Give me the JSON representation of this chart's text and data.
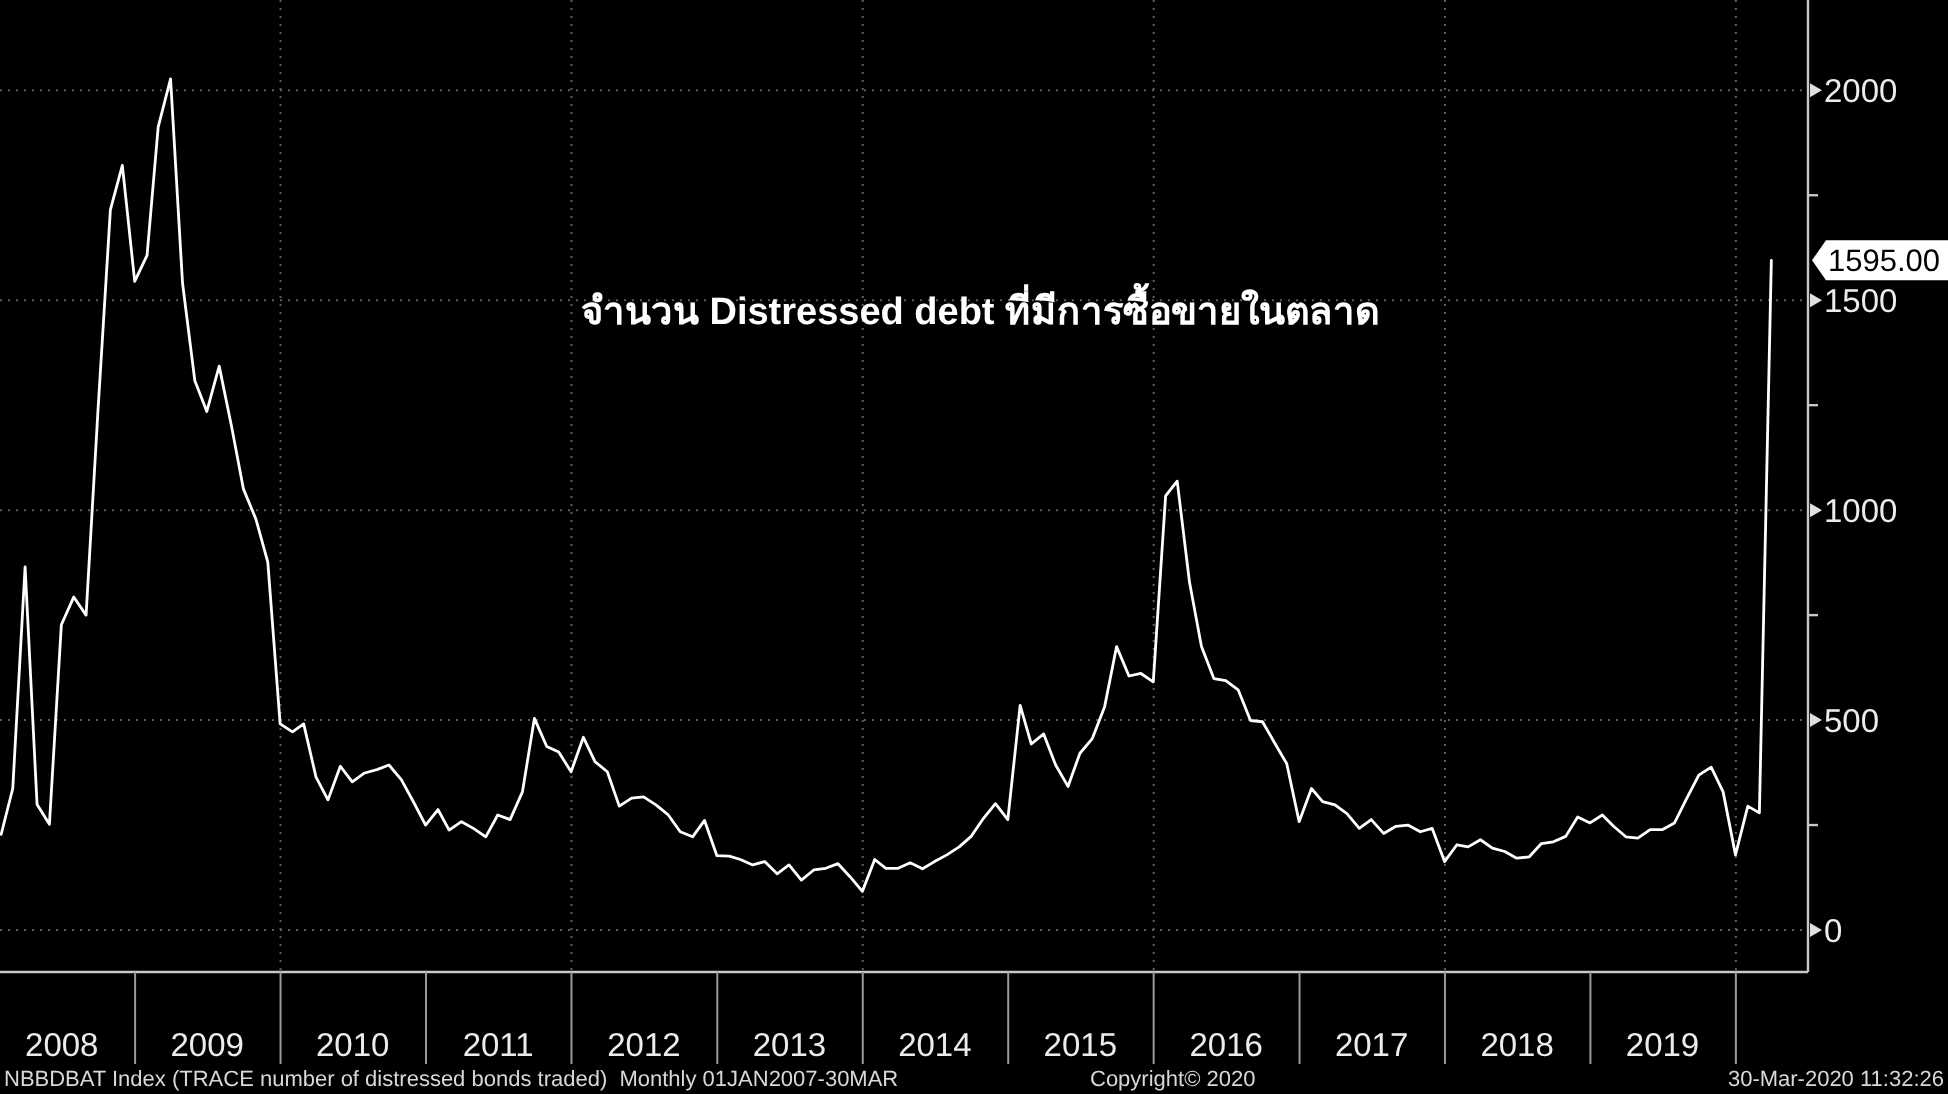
{
  "chart_data": {
    "type": "line",
    "title": "จำนวน Distressed debt ที่มีการซื้อขายในตลาด",
    "annotations": [
      "NBBDBAT Index (TRACE number of distressed bonds traded)  Monthly 01JAN2007-30MAR",
      "Copyright© 2020",
      "30-Mar-2020 11:32:26"
    ],
    "x": [
      "2008-01-31",
      "2008-02-29",
      "2008-03-31",
      "2008-04-30",
      "2008-05-31",
      "2008-06-30",
      "2008-07-31",
      "2008-08-31",
      "2008-09-30",
      "2008-10-31",
      "2008-11-30",
      "2008-12-31",
      "2009-01-31",
      "2009-02-28",
      "2009-03-31",
      "2009-04-30",
      "2009-05-31",
      "2009-06-30",
      "2009-07-31",
      "2009-08-31",
      "2009-09-30",
      "2009-10-31",
      "2009-11-30",
      "2009-12-31",
      "2010-01-31",
      "2010-02-28",
      "2010-03-31",
      "2010-04-30",
      "2010-05-31",
      "2010-06-30",
      "2010-07-31",
      "2010-08-31",
      "2010-09-30",
      "2010-10-31",
      "2010-11-30",
      "2010-12-31",
      "2011-01-31",
      "2011-02-28",
      "2011-03-31",
      "2011-04-30",
      "2011-05-31",
      "2011-06-30",
      "2011-07-31",
      "2011-08-31",
      "2011-09-30",
      "2011-10-31",
      "2011-11-30",
      "2011-12-31",
      "2012-01-31",
      "2012-02-29",
      "2012-03-31",
      "2012-04-30",
      "2012-05-31",
      "2012-06-30",
      "2012-07-31",
      "2012-08-31",
      "2012-09-30",
      "2012-10-31",
      "2012-11-30",
      "2012-12-31",
      "2013-01-31",
      "2013-02-28",
      "2013-03-31",
      "2013-04-30",
      "2013-05-31",
      "2013-06-30",
      "2013-07-31",
      "2013-08-31",
      "2013-09-30",
      "2013-10-31",
      "2013-11-30",
      "2013-12-31",
      "2014-01-31",
      "2014-02-28",
      "2014-03-31",
      "2014-04-30",
      "2014-05-31",
      "2014-06-30",
      "2014-07-31",
      "2014-08-31",
      "2014-09-30",
      "2014-10-31",
      "2014-11-30",
      "2014-12-31",
      "2015-01-31",
      "2015-02-28",
      "2015-03-31",
      "2015-04-30",
      "2015-05-31",
      "2015-06-30",
      "2015-07-31",
      "2015-08-31",
      "2015-09-30",
      "2015-10-31",
      "2015-11-30",
      "2015-12-31",
      "2016-01-31",
      "2016-02-29",
      "2016-03-31",
      "2016-04-30",
      "2016-05-31",
      "2016-06-30",
      "2016-07-31",
      "2016-08-31",
      "2016-09-30",
      "2016-10-31",
      "2016-11-30",
      "2016-12-31",
      "2017-01-31",
      "2017-02-28",
      "2017-03-31",
      "2017-04-30",
      "2017-05-31",
      "2017-06-30",
      "2017-07-31",
      "2017-08-31",
      "2017-09-30",
      "2017-10-31",
      "2017-11-30",
      "2017-12-31",
      "2018-01-31",
      "2018-02-28",
      "2018-03-31",
      "2018-04-30",
      "2018-05-31",
      "2018-06-30",
      "2018-07-31",
      "2018-08-31",
      "2018-09-30",
      "2018-10-31",
      "2018-11-30",
      "2018-12-31",
      "2019-01-31",
      "2019-02-28",
      "2019-03-31",
      "2019-04-30",
      "2019-05-31",
      "2019-06-30",
      "2019-07-31",
      "2019-08-31",
      "2019-09-30",
      "2019-10-31",
      "2019-11-30",
      "2019-12-31",
      "2020-01-31",
      "2020-02-29",
      "2020-03-30"
    ],
    "values": [
      228,
      337,
      865,
      299,
      252,
      727,
      793,
      750,
      1240,
      1715,
      1821,
      1545,
      1607,
      1913,
      2027,
      1541,
      1308,
      1235,
      1343,
      1200,
      1050,
      979,
      876,
      491,
      472,
      491,
      364,
      310,
      390,
      353,
      374,
      382,
      393,
      358,
      306,
      250,
      287,
      238,
      258,
      242,
      222,
      274,
      263,
      329,
      504,
      437,
      424,
      377,
      459,
      401,
      377,
      295,
      314,
      317,
      298,
      274,
      234,
      222,
      261,
      177,
      176,
      168,
      155,
      163,
      134,
      155,
      119,
      143,
      147,
      158,
      127,
      92,
      168,
      147,
      147,
      160,
      146,
      163,
      179,
      198,
      223,
      266,
      301,
      263,
      535,
      443,
      467,
      393,
      342,
      421,
      456,
      532,
      675,
      605,
      611,
      591,
      1034,
      1069,
      828,
      675,
      599,
      594,
      572,
      499,
      496,
      445,
      396,
      258,
      337,
      306,
      298,
      277,
      242,
      263,
      230,
      247,
      250,
      234,
      242,
      163,
      203,
      198,
      215,
      195,
      187,
      171,
      174,
      206,
      210,
      223,
      269,
      255,
      274,
      247,
      222,
      219,
      239,
      239,
      255,
      314,
      369,
      388,
      329,
      179,
      295,
      279,
      1595
    ],
    "value_labels": [
      null,
      null,
      null,
      null,
      null,
      null,
      null,
      null,
      null,
      null,
      null,
      null,
      null,
      null,
      null,
      null,
      null,
      null,
      null,
      null,
      null,
      null,
      null,
      null,
      null,
      null,
      null,
      null,
      null,
      null,
      null,
      null,
      null,
      null,
      null,
      null,
      null,
      null,
      null,
      null,
      null,
      null,
      null,
      null,
      null,
      null,
      null,
      null,
      null,
      null,
      null,
      null,
      null,
      null,
      null,
      null,
      null,
      null,
      null,
      null,
      null,
      null,
      null,
      null,
      null,
      null,
      null,
      null,
      null,
      null,
      null,
      null,
      null,
      null,
      null,
      null,
      null,
      null,
      null,
      null,
      null,
      null,
      null,
      null,
      null,
      null,
      null,
      null,
      null,
      null,
      null,
      null,
      null,
      null,
      null,
      null,
      null,
      null,
      null,
      null,
      null,
      null,
      null,
      null,
      null,
      null,
      null,
      null,
      null,
      null,
      null,
      null,
      null,
      null,
      null,
      null,
      null,
      null,
      null,
      null,
      null,
      null,
      null,
      null,
      null,
      null,
      null,
      null,
      null,
      null,
      null,
      null,
      null,
      null,
      null,
      null,
      null,
      null,
      null,
      null,
      null,
      null,
      null,
      null,
      null,
      null,
      "1595.00"
    ],
    "color": "#ffffff",
    "xlim": [
      "2008-01-28",
      "2020-06-30"
    ],
    "xticks": [
      {
        "value": "2008-07-01",
        "label": "2008"
      },
      {
        "value": "2009-01-01",
        "label": null
      },
      {
        "value": "2009-07-01",
        "label": "2009"
      },
      {
        "value": "2010-01-01",
        "label": null
      },
      {
        "value": "2010-07-01",
        "label": "2010"
      },
      {
        "value": "2011-01-01",
        "label": null
      },
      {
        "value": "2011-07-01",
        "label": "2011"
      },
      {
        "value": "2012-01-01",
        "label": null
      },
      {
        "value": "2012-07-01",
        "label": "2012"
      },
      {
        "value": "2013-01-01",
        "label": null
      },
      {
        "value": "2013-07-01",
        "label": "2013"
      },
      {
        "value": "2014-01-01",
        "label": null
      },
      {
        "value": "2014-07-01",
        "label": "2014"
      },
      {
        "value": "2015-01-01",
        "label": null
      },
      {
        "value": "2015-07-01",
        "label": "2015"
      },
      {
        "value": "2016-01-01",
        "label": null
      },
      {
        "value": "2016-07-01",
        "label": "2016"
      },
      {
        "value": "2017-01-01",
        "label": null
      },
      {
        "value": "2017-07-01",
        "label": "2017"
      },
      {
        "value": "2018-01-01",
        "label": null
      },
      {
        "value": "2018-07-01",
        "label": "2018"
      },
      {
        "value": "2019-01-01",
        "label": null
      },
      {
        "value": "2019-07-01",
        "label": "2019"
      },
      {
        "value": "2020-01-01",
        "label": null
      }
    ],
    "ylim": [
      -100,
      2215
    ],
    "yticks": [
      0,
      {
        "value": 250,
        "label": null
      },
      500,
      {
        "value": 750,
        "label": null
      },
      1000,
      {
        "value": 1250,
        "label": null
      },
      1500,
      {
        "value": 1750,
        "label": null
      },
      2000
    ],
    "grid": "y",
    "ref_lines": [
      {
        "axis": "x",
        "value": "2010-01-01",
        "color": "#5e5e5e",
        "line_style": "dotted"
      },
      {
        "axis": "x",
        "value": "2012-01-01",
        "color": "#5e5e5e",
        "line_style": "dotted"
      },
      {
        "axis": "x",
        "value": "2014-01-01",
        "color": "#5e5e5e",
        "line_style": "dotted"
      },
      {
        "axis": "x",
        "value": "2016-01-01",
        "color": "#5e5e5e",
        "line_style": "dotted"
      },
      {
        "axis": "x",
        "value": "2018-01-01",
        "color": "#5e5e5e",
        "line_style": "dotted"
      },
      {
        "axis": "x",
        "value": "2020-01-01",
        "color": "#5e5e5e",
        "line_style": "dotted"
      }
    ]
  }
}
